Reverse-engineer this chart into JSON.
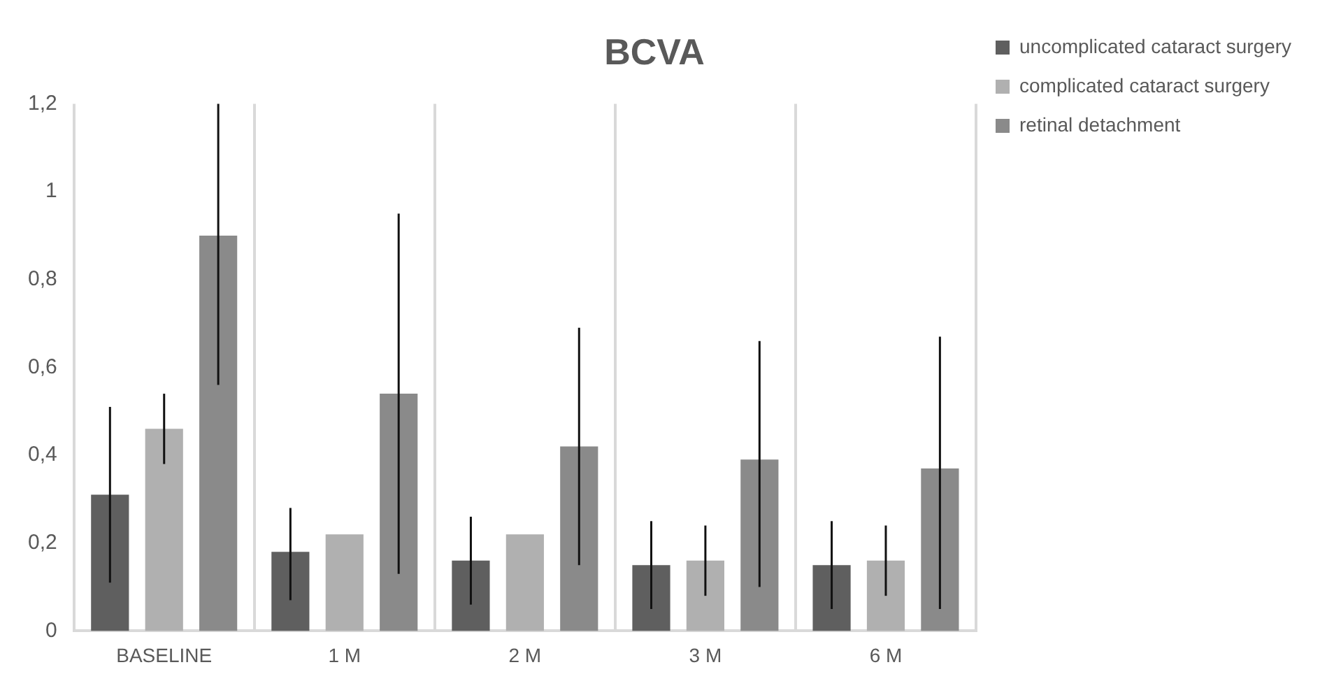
{
  "chart_data": {
    "type": "bar",
    "title": "BCVA",
    "categories": [
      "BASELINE",
      "1 M",
      "2 M",
      "3 M",
      "6 M"
    ],
    "series": [
      {
        "name": "uncomplicated cataract surgery",
        "color": "#5f5f5f",
        "values": [
          0.31,
          0.18,
          0.16,
          0.15,
          0.15
        ],
        "errors": [
          [
            0.11,
            0.51
          ],
          [
            0.07,
            0.28
          ],
          [
            0.06,
            0.26
          ],
          [
            0.05,
            0.25
          ],
          [
            0.05,
            0.25
          ]
        ]
      },
      {
        "name": "complicated cataract surgery",
        "color": "#b0b0b0",
        "values": [
          0.46,
          0.22,
          0.22,
          0.16,
          0.16
        ],
        "errors": [
          [
            0.38,
            0.54
          ],
          null,
          null,
          [
            0.08,
            0.24
          ],
          [
            0.08,
            0.24
          ]
        ]
      },
      {
        "name": "retinal detachment",
        "color": "#8a8a8a",
        "values": [
          0.9,
          0.54,
          0.42,
          0.39,
          0.37
        ],
        "errors": [
          [
            0.56,
            1.2
          ],
          [
            0.13,
            0.95
          ],
          [
            0.15,
            0.69
          ],
          [
            0.1,
            0.66
          ],
          [
            0.05,
            0.67
          ]
        ]
      }
    ],
    "ylim": [
      0,
      1.2
    ],
    "yticks": [
      0,
      {
        "value": 0.2,
        "label": "0,2"
      },
      {
        "value": 0.4,
        "label": "0,4"
      },
      {
        "value": 0.6,
        "label": "0,6"
      },
      {
        "value": 0.8,
        "label": "0,8"
      },
      1,
      {
        "value": 1.2,
        "label": "1,2"
      }
    ],
    "grid": "x",
    "legend": "right"
  }
}
